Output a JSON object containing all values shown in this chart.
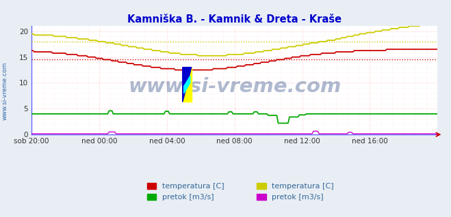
{
  "title": "Kamniška B. - Kamnik & Dreta - Kraše",
  "title_color": "#0000cc",
  "bg_color": "#e8eef4",
  "plot_bg_color": "#ffffff",
  "xlim": [
    0,
    288
  ],
  "ylim": [
    0,
    21
  ],
  "yticks": [
    0,
    5,
    10,
    15,
    20
  ],
  "x_tick_labels": [
    "sob 20:00",
    "ned 00:00",
    "ned 04:00",
    "ned 08:00",
    "ned 12:00",
    "ned 16:00"
  ],
  "x_tick_positions": [
    0,
    48,
    96,
    144,
    192,
    240
  ],
  "grid_color_pink": "#ffcccc",
  "grid_color_minor": "#ffe8e8",
  "watermark": "www.si-vreme.com",
  "watermark_color": "#1a3a7a",
  "watermark_alpha": 0.35,
  "side_label": "www.si-vreme.com",
  "side_label_color": "#3366aa",
  "legend_items": [
    {
      "label": "temperatura [C]",
      "color": "#cc0000"
    },
    {
      "label": "pretok [m3/s]",
      "color": "#00aa00"
    },
    {
      "label": "temperatura [C]",
      "color": "#cccc00"
    },
    {
      "label": "pretok [m3/s]",
      "color": "#cc00cc"
    }
  ],
  "hline_red_y": 14.5,
  "hline_red_color": "#cc0000",
  "hline_yellow_y": 18.0,
  "hline_yellow_color": "#cccc00",
  "axis_line_color": "#6666ff",
  "arrow_color": "#cc0000"
}
